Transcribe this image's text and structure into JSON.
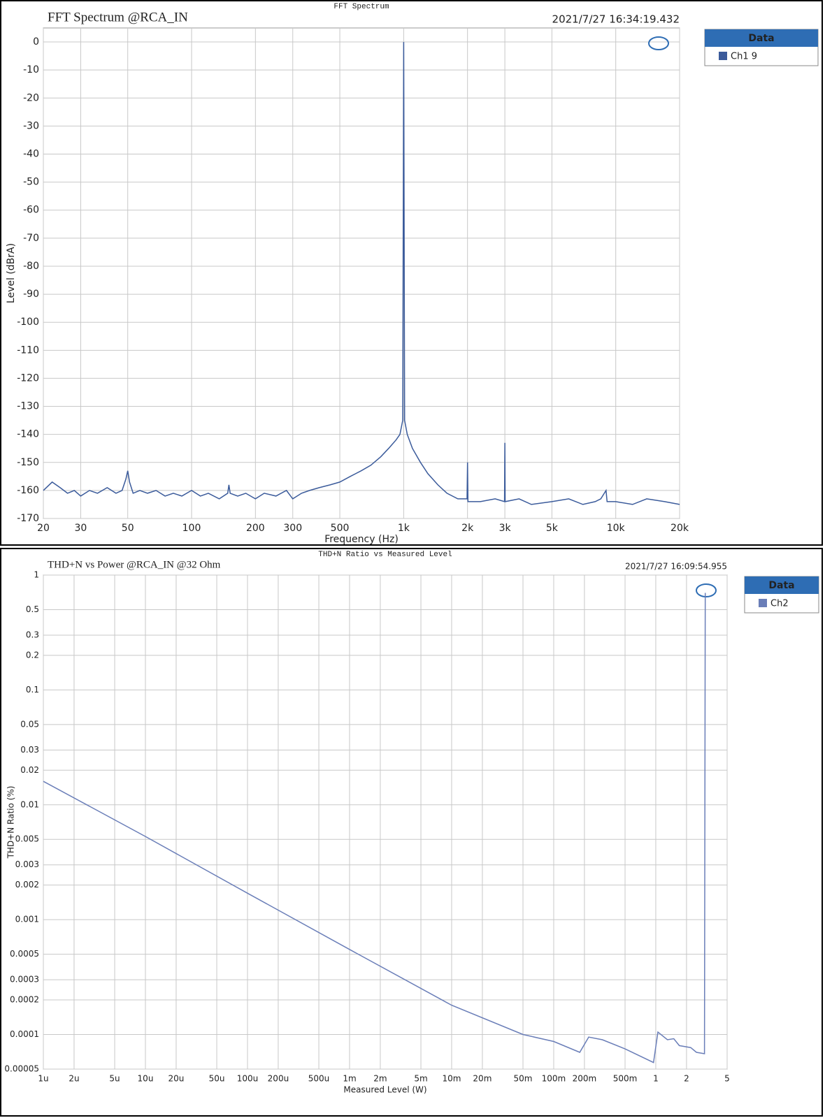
{
  "chart_data": [
    {
      "type": "line",
      "title": "FFT Spectrum",
      "subtitle": "FFT Spectrum @RCA_IN",
      "timestamp": "2021/7/27 16:34:19.432",
      "legend_title": "Data",
      "xlabel": "Frequency (Hz)",
      "ylabel": "Level (dBrA)",
      "xscale": "log",
      "yscale": "linear",
      "grid": true,
      "xlim": [
        20,
        20000
      ],
      "ylim": [
        -170,
        5
      ],
      "xticks": [
        20,
        30,
        50,
        100,
        200,
        300,
        500,
        {
          "value": 1000,
          "label": "1k"
        },
        {
          "value": 2000,
          "label": "2k"
        },
        {
          "value": 3000,
          "label": "3k"
        },
        {
          "value": 5000,
          "label": "5k"
        },
        {
          "value": 10000,
          "label": "10k"
        },
        {
          "value": 20000,
          "label": "20k"
        }
      ],
      "yticks": [
        0,
        -10,
        -20,
        -30,
        -40,
        -50,
        -60,
        -70,
        -80,
        -90,
        -100,
        -110,
        -120,
        -130,
        -140,
        -150,
        -160,
        -170
      ],
      "x": [
        20,
        22,
        24,
        26,
        28,
        30,
        33,
        36,
        40,
        44,
        47,
        49,
        50,
        51,
        53,
        57,
        62,
        68,
        75,
        82,
        90,
        100,
        110,
        120,
        135,
        148,
        150,
        152,
        165,
        180,
        200,
        220,
        250,
        280,
        300,
        330,
        360,
        400,
        450,
        500,
        560,
        630,
        700,
        780,
        850,
        920,
        960,
        990,
        1000,
        1010,
        1040,
        1100,
        1200,
        1300,
        1450,
        1600,
        1800,
        1990,
        2000,
        2010,
        2300,
        2700,
        2990,
        3000,
        3010,
        3500,
        4000,
        5000,
        6000,
        7000,
        8000,
        8500,
        9000,
        9100,
        10000,
        12000,
        14000,
        17000,
        20000
      ],
      "series": [
        {
          "name": "Ch1 9",
          "color": "#3b5b9b",
          "values": [
            -160,
            -157,
            -159,
            -161,
            -160,
            -162,
            -160,
            -161,
            -159,
            -161,
            -160,
            -156,
            -153,
            -157,
            -161,
            -160,
            -161,
            -160,
            -162,
            -161,
            -162,
            -160,
            -162,
            -161,
            -163,
            -161,
            -158,
            -161,
            -162,
            -161,
            -163,
            -161,
            -162,
            -160,
            -163,
            -161,
            -160,
            -159,
            -158,
            -157,
            -155,
            -153,
            -151,
            -148,
            -145,
            -142,
            -140,
            -135,
            0,
            -135,
            -140,
            -145,
            -150,
            -154,
            -158,
            -161,
            -163,
            -163,
            -150,
            -164,
            -164,
            -163,
            -164,
            -143,
            -164,
            -163,
            -165,
            -164,
            -163,
            -165,
            -164,
            -163,
            -160,
            -164,
            -164,
            -165,
            -163,
            -164,
            -165
          ]
        }
      ]
    },
    {
      "type": "line",
      "title": "THD+N Ratio vs Measured Level",
      "subtitle": "THD+N vs Power @RCA_IN @32 Ohm",
      "timestamp": "2021/7/27 16:09:54.955",
      "legend_title": "Data",
      "xlabel": "Measured Level (W)",
      "ylabel": "THD+N Ratio (%)",
      "xscale": "log",
      "yscale": "log",
      "grid": true,
      "xlim": [
        1e-06,
        5
      ],
      "ylim": [
        5e-05,
        1
      ],
      "xticks": [
        {
          "value": 1e-06,
          "label": "1u"
        },
        {
          "value": 2e-06,
          "label": "2u"
        },
        {
          "value": 5e-06,
          "label": "5u"
        },
        {
          "value": 1e-05,
          "label": "10u"
        },
        {
          "value": 2e-05,
          "label": "20u"
        },
        {
          "value": 5e-05,
          "label": "50u"
        },
        {
          "value": 0.0001,
          "label": "100u"
        },
        {
          "value": 0.0002,
          "label": "200u"
        },
        {
          "value": 0.0005,
          "label": "500u"
        },
        {
          "value": 0.001,
          "label": "1m"
        },
        {
          "value": 0.002,
          "label": "2m"
        },
        {
          "value": 0.005,
          "label": "5m"
        },
        {
          "value": 0.01,
          "label": "10m"
        },
        {
          "value": 0.02,
          "label": "20m"
        },
        {
          "value": 0.05,
          "label": "50m"
        },
        {
          "value": 0.1,
          "label": "100m"
        },
        {
          "value": 0.2,
          "label": "200m"
        },
        {
          "value": 0.5,
          "label": "500m"
        },
        1,
        2,
        5
      ],
      "yticks": [
        1,
        0.5,
        0.3,
        0.2,
        0.1,
        0.05,
        0.03,
        0.02,
        0.01,
        0.005,
        0.003,
        0.002,
        0.001,
        0.0005,
        0.0003,
        0.0002,
        0.0001,
        {
          "value": 5e-05,
          "label": "0.00005"
        }
      ],
      "x": [
        1e-06,
        1e-05,
        0.0001,
        0.001,
        0.01,
        0.05,
        0.1,
        0.18,
        0.22,
        0.3,
        0.5,
        0.95,
        1.05,
        1.3,
        1.5,
        1.7,
        2.2,
        2.5,
        3.0,
        3.05
      ],
      "series": [
        {
          "name": "Ch2",
          "color": "#6a7eb8",
          "values": [
            0.016,
            0.0053,
            0.0017,
            0.00055,
            0.00018,
            0.0001,
            8.7e-05,
            7e-05,
            9.5e-05,
            9e-05,
            7.5e-05,
            5.7e-05,
            0.000105,
            9e-05,
            9.2e-05,
            8e-05,
            7.7e-05,
            7e-05,
            6.8e-05,
            0.7
          ]
        }
      ]
    }
  ]
}
